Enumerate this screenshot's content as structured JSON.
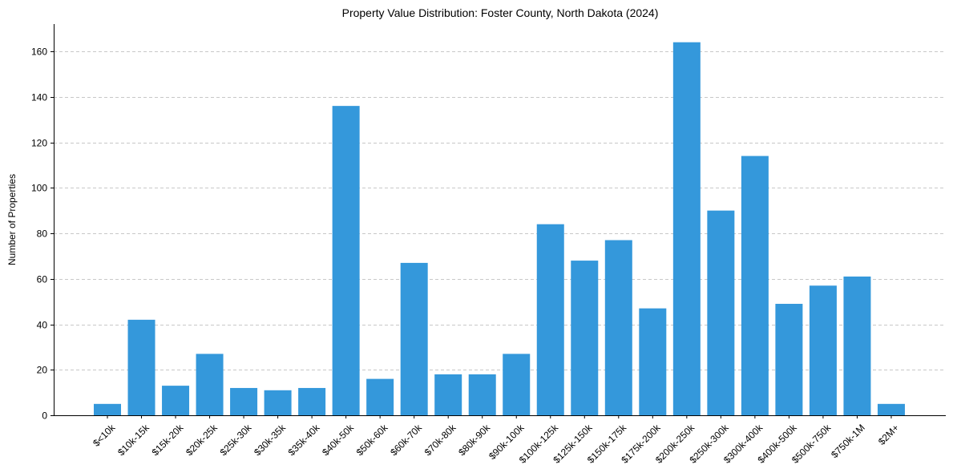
{
  "chart_data": {
    "type": "bar",
    "title": "Property Value Distribution: Foster County, North Dakota (2024)",
    "xlabel": "",
    "ylabel": "Number of Properties",
    "categories": [
      "$<10k",
      "$10k-15k",
      "$15k-20k",
      "$20k-25k",
      "$25k-30k",
      "$30k-35k",
      "$35k-40k",
      "$40k-50k",
      "$50k-60k",
      "$60k-70k",
      "$70k-80k",
      "$80k-90k",
      "$90k-100k",
      "$100k-125k",
      "$125k-150k",
      "$150k-175k",
      "$175k-200k",
      "$200k-250k",
      "$250k-300k",
      "$300k-400k",
      "$400k-500k",
      "$500k-750k",
      "$750k-1M",
      "$2M+"
    ],
    "values": [
      5,
      42,
      13,
      27,
      12,
      11,
      12,
      136,
      16,
      67,
      18,
      18,
      27,
      84,
      68,
      77,
      47,
      164,
      90,
      114,
      49,
      57,
      61,
      5
    ],
    "ylim": [
      0,
      172
    ],
    "yticks": [
      0,
      20,
      40,
      60,
      80,
      100,
      120,
      140,
      160
    ],
    "grid": "y-dashed",
    "bar_color": "#3498db",
    "grid_color": "#c8c8c8"
  }
}
